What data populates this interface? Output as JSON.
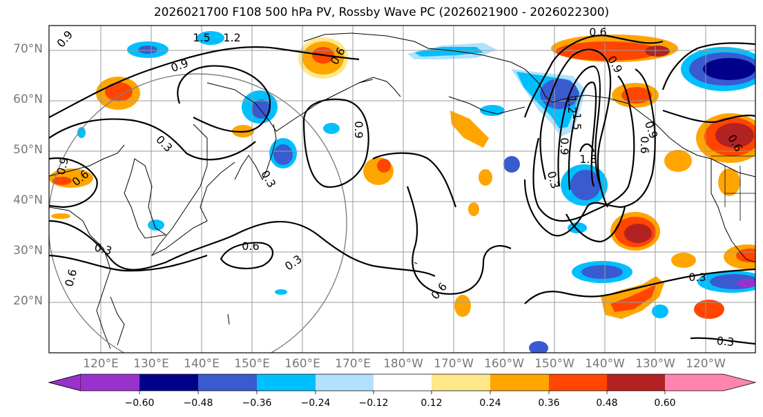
{
  "title": "2026021700 F108 500 hPa PV, Rossby Wave PC (2026021900 - 2026022300)",
  "map": {
    "lat_labels": [
      "70°N",
      "60°N",
      "50°N",
      "40°N",
      "30°N",
      "20°N"
    ],
    "lon_labels": [
      "120°E",
      "130°E",
      "140°E",
      "150°E",
      "160°E",
      "170°E",
      "180°W",
      "170°W",
      "160°W",
      "150°W",
      "140°W",
      "130°W",
      "120°W"
    ],
    "contour_labels": [
      "0.9",
      "1.5",
      "1.2",
      "0.9",
      "0.6",
      "0.6",
      "0.9",
      "0.3",
      "0.9",
      "0.6",
      "0.3",
      "0.3",
      "0.6",
      "0.3",
      "0.6",
      "0.6",
      "0.9",
      "1.2",
      "1.5",
      "1.8",
      "0.3",
      "0.9",
      "0.6",
      "0.9",
      "0.6",
      "0.3",
      "0.3"
    ]
  },
  "colorbar": {
    "ticks": [
      "−0.60",
      "−0.48",
      "−0.36",
      "−0.24",
      "−0.12",
      "0.12",
      "0.24",
      "0.36",
      "0.48",
      "0.60"
    ],
    "bins": [
      {
        "range": "< −0.60",
        "color": "#9932cc"
      },
      {
        "range": "−0.60 to −0.48",
        "color": "#00008b"
      },
      {
        "range": "−0.48 to −0.36",
        "color": "#3a5bd0"
      },
      {
        "range": "−0.36 to −0.24",
        "color": "#00bfff"
      },
      {
        "range": "−0.24 to −0.12",
        "color": "#b0e2ff"
      },
      {
        "range": "−0.12 to 0.12",
        "color": "#ffffff"
      },
      {
        "range": "0.12 to 0.24",
        "color": "#ffe88a"
      },
      {
        "range": "0.24 to 0.36",
        "color": "#ffa500"
      },
      {
        "range": "0.36 to 0.48",
        "color": "#ff4500"
      },
      {
        "range": "0.48 to 0.60",
        "color": "#b22222"
      },
      {
        "range": "> 0.60",
        "color": "#ff85b0"
      }
    ]
  }
}
